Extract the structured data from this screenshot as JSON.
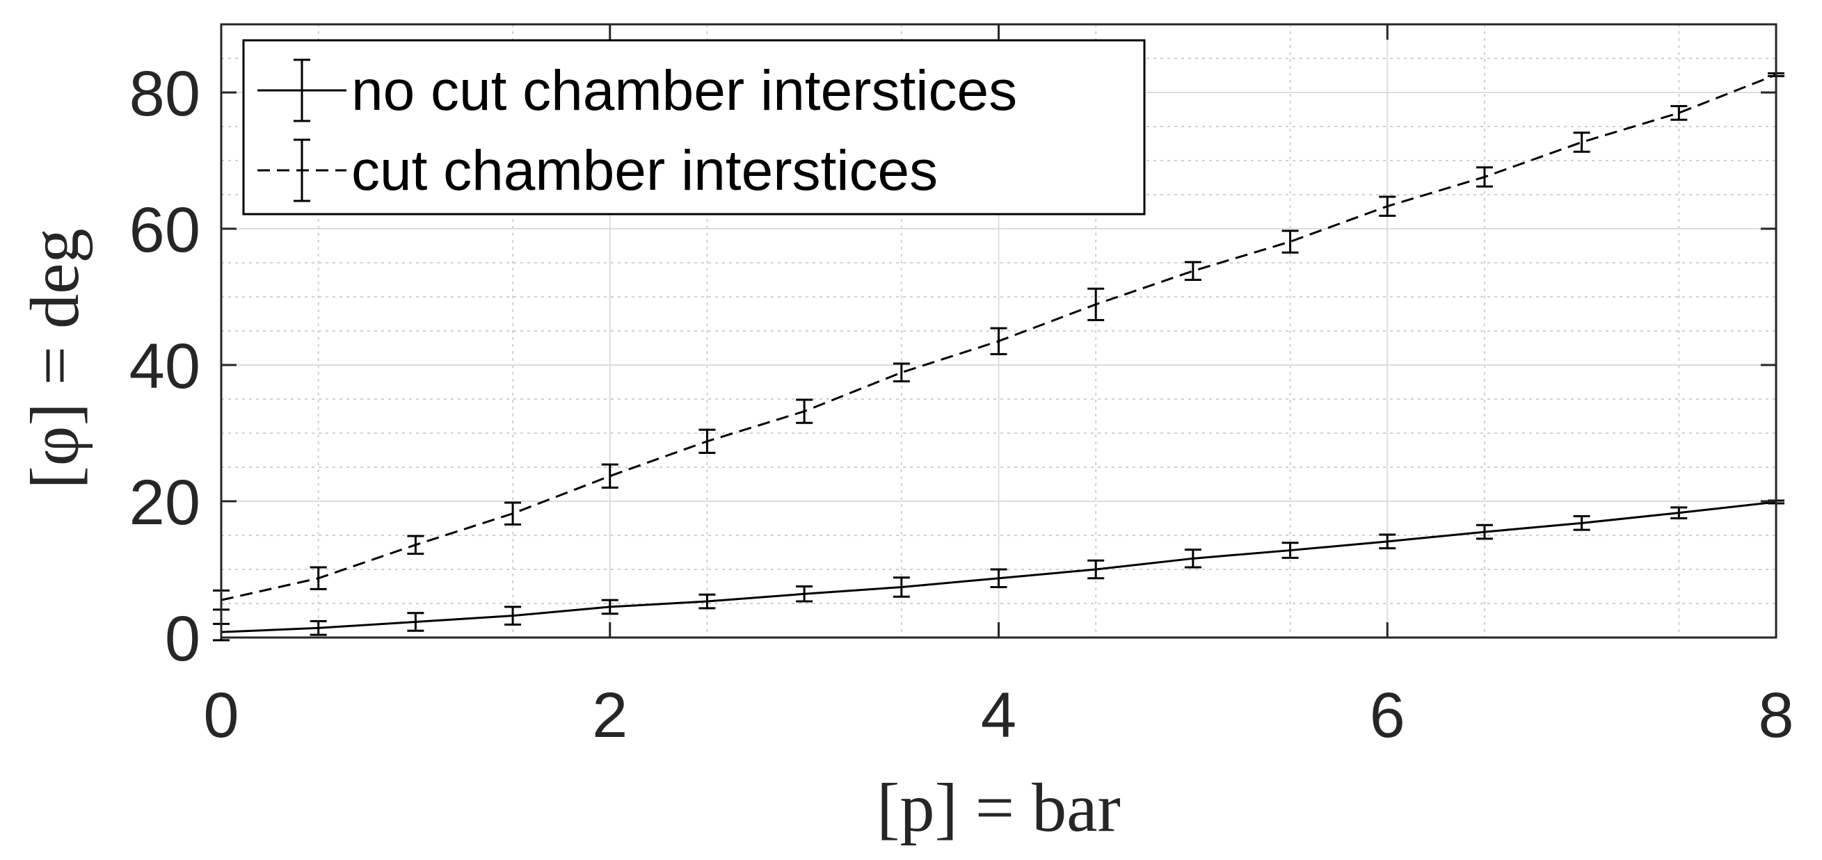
{
  "chart_data": {
    "type": "line",
    "xlabel": "[p] = bar",
    "ylabel": "[φ] = deg",
    "xlim": [
      0,
      8
    ],
    "ylim": [
      0,
      90
    ],
    "x_ticks": [
      "0",
      "2",
      "4",
      "6",
      "8"
    ],
    "y_ticks": [
      "0",
      "20",
      "40",
      "60",
      "80"
    ],
    "grid": true,
    "minor_grid": true,
    "legend_position": "top-left",
    "x": [
      0,
      0.5,
      1,
      1.5,
      2,
      2.5,
      3,
      3.5,
      4,
      4.5,
      5,
      5.5,
      6,
      6.5,
      7,
      7.5,
      8
    ],
    "series": [
      {
        "name": "no cut chamber interstices",
        "line_style": "solid",
        "color": "#000000",
        "values": [
          0.8,
          1.4,
          2.3,
          3.2,
          4.5,
          5.3,
          6.4,
          7.4,
          8.7,
          10.0,
          11.6,
          12.8,
          14.1,
          15.5,
          16.8,
          18.3,
          19.9
        ],
        "errors": [
          1.2,
          1.0,
          1.3,
          1.3,
          1.0,
          1.0,
          1.1,
          1.4,
          1.3,
          1.3,
          1.3,
          1.1,
          1.0,
          1.0,
          1.0,
          0.8,
          0.2
        ]
      },
      {
        "name": "cut chamber interstices",
        "line_style": "dashed",
        "color": "#000000",
        "values": [
          5.5,
          8.7,
          13.6,
          18.2,
          23.7,
          28.8,
          33.2,
          38.9,
          43.5,
          48.9,
          53.8,
          58.1,
          63.3,
          67.6,
          72.7,
          77.0,
          82.6
        ],
        "errors": [
          1.4,
          1.6,
          1.3,
          1.6,
          1.7,
          1.7,
          1.7,
          1.3,
          1.9,
          2.3,
          1.3,
          1.6,
          1.4,
          1.4,
          1.4,
          1.0,
          0.2
        ]
      }
    ]
  }
}
